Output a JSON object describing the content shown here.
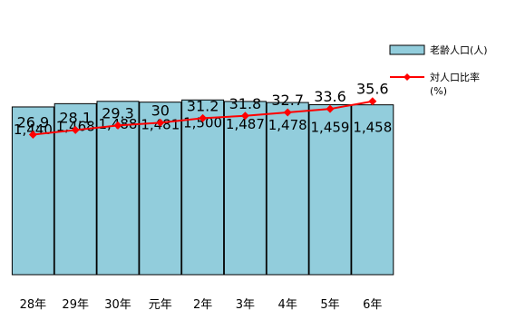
{
  "chart_data": {
    "type": "bar",
    "categories": [
      "28年",
      "29年",
      "30年",
      "元年",
      "2年",
      "3年",
      "4年",
      "5年",
      "6年"
    ],
    "series": [
      {
        "name": "老齢人口(人)",
        "type": "bar",
        "values": [
          1440,
          1468,
          1488,
          1481,
          1500,
          1487,
          1478,
          1459,
          1458
        ],
        "labels": [
          "1,440",
          "1,468",
          "1,488",
          "1,481",
          "1,500",
          "1,487",
          "1,478",
          "1,459",
          "1,458"
        ],
        "color": "#92cddc"
      },
      {
        "name": "対人口比率",
        "unit": "(%)",
        "type": "line",
        "values": [
          26.9,
          28.1,
          29.3,
          30,
          31.2,
          31.8,
          32.7,
          33.6,
          35.6
        ],
        "labels": [
          "26.9",
          "28.1",
          "29.3",
          "30",
          "31.2",
          "31.8",
          "32.7",
          "33.6",
          "35.6"
        ],
        "color": "#ff0000"
      }
    ],
    "legend_position": "right",
    "grid": false
  }
}
